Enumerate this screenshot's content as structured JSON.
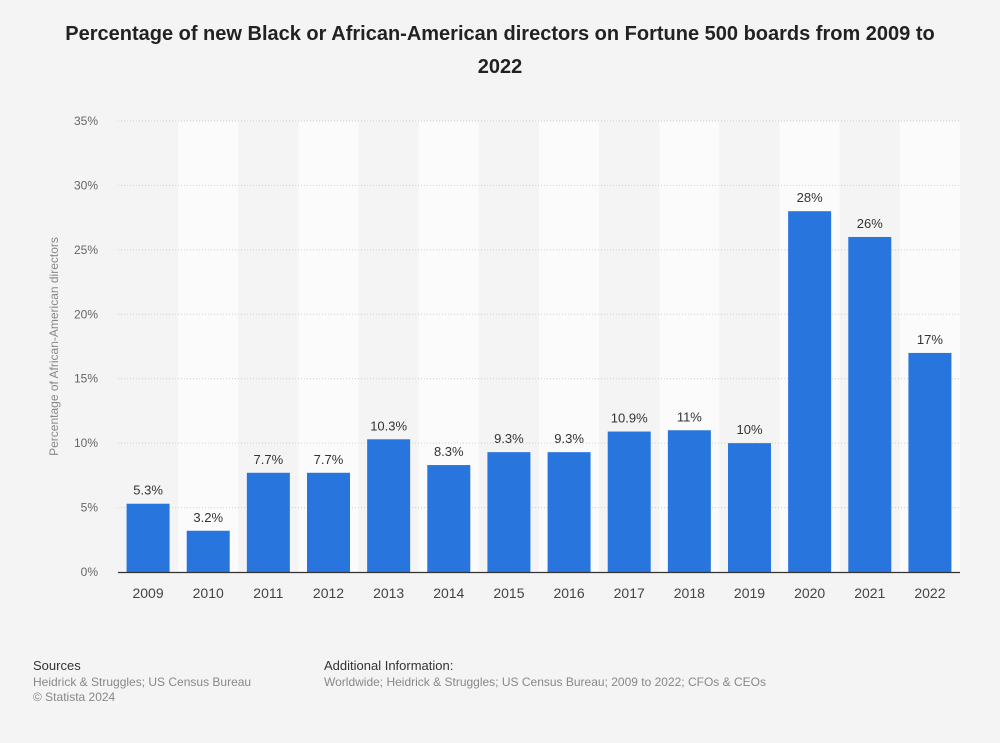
{
  "chart_data": {
    "type": "bar",
    "title": "Percentage of new Black or African-American directors on Fortune 500 boards from 2009 to 2022",
    "xlabel": "",
    "ylabel": "Percentage of African-American directors",
    "categories": [
      "2009",
      "2010",
      "2011",
      "2012",
      "2013",
      "2014",
      "2015",
      "2016",
      "2017",
      "2018",
      "2019",
      "2020",
      "2021",
      "2022"
    ],
    "values": [
      5.3,
      3.2,
      7.7,
      7.7,
      10.3,
      8.3,
      9.3,
      9.3,
      10.9,
      11,
      10,
      28,
      26,
      17
    ],
    "value_labels": [
      "5.3%",
      "3.2%",
      "7.7%",
      "7.7%",
      "10.3%",
      "8.3%",
      "9.3%",
      "9.3%",
      "10.9%",
      "11%",
      "10%",
      "28%",
      "26%",
      "17%"
    ],
    "yticks": [
      0,
      5,
      10,
      15,
      20,
      25,
      30,
      35
    ],
    "ytick_labels": [
      "0%",
      "5%",
      "10%",
      "15%",
      "20%",
      "25%",
      "30%",
      "35%"
    ],
    "ylim": [
      0,
      35
    ],
    "grid": true,
    "bar_color": "#2876dd"
  },
  "footer": {
    "sources_heading": "Sources",
    "sources_line1": "Heidrick & Struggles; US Census Bureau",
    "sources_line2": "© Statista 2024",
    "additional_heading": "Additional Information:",
    "additional_line1": "Worldwide; Heidrick & Struggles; US Census Bureau; 2009 to 2022; CFOs & CEOs"
  }
}
